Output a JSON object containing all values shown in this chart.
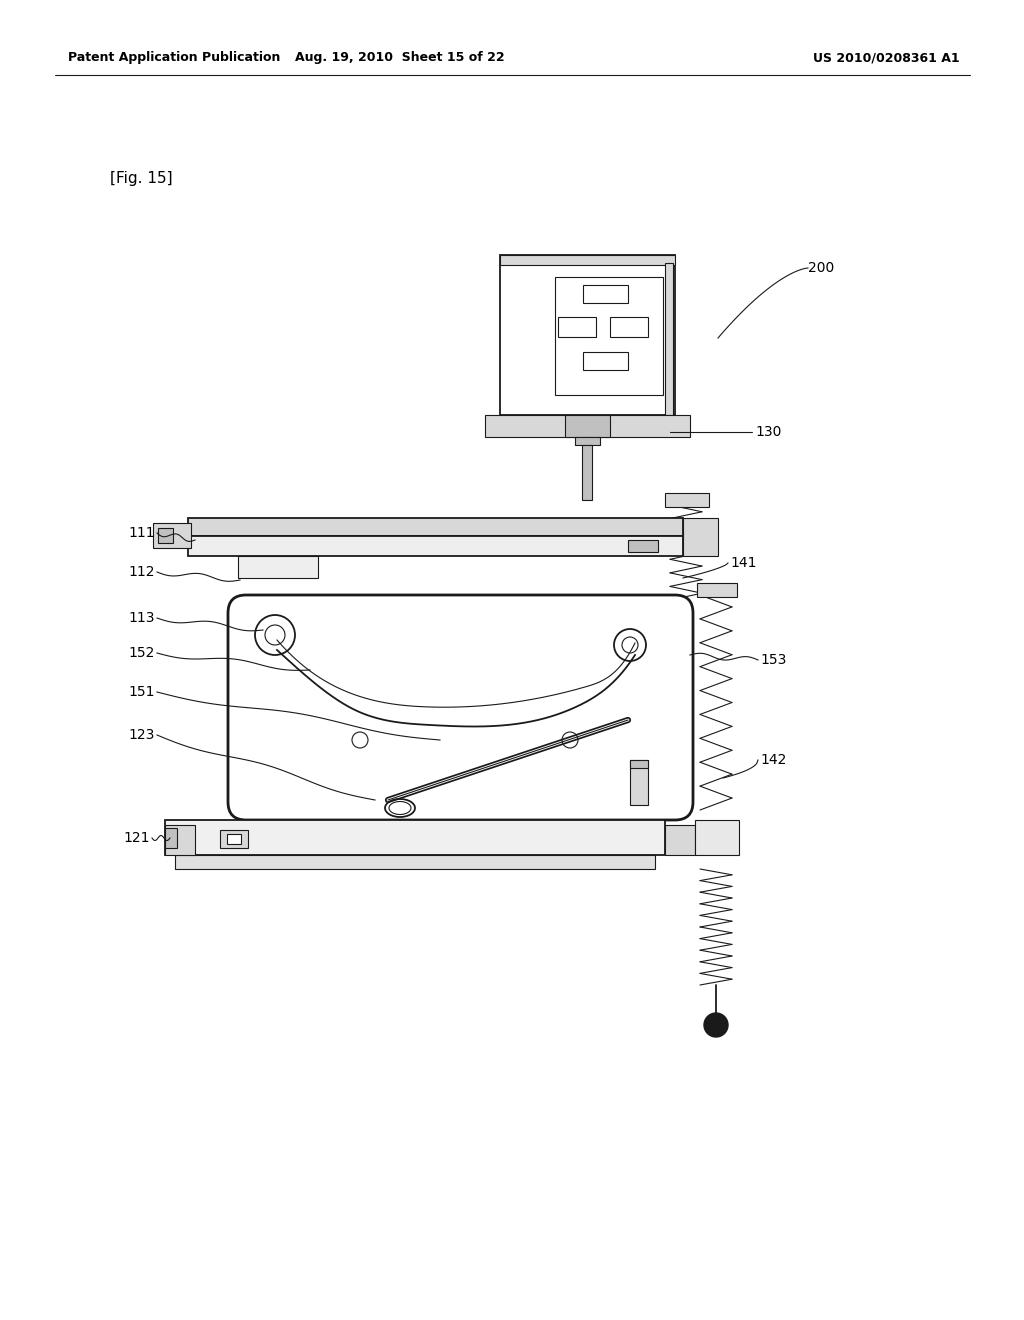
{
  "header_left": "Patent Application Publication",
  "header_mid": "Aug. 19, 2010  Sheet 15 of 22",
  "header_right": "US 2010/0208361 A1",
  "fig_label": "[Fig. 15]",
  "bg_color": "#ffffff",
  "line_color": "#1a1a1a",
  "gray_light": "#d8d8d8",
  "gray_mid": "#c0c0c0"
}
